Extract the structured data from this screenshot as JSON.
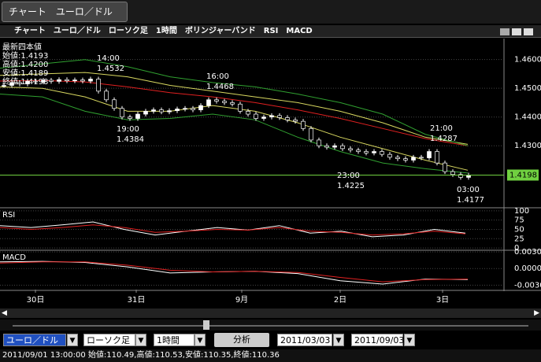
{
  "tab": "チャート　ユーロ／ドル",
  "window_title": "チャート　ユーロ／ドル　ローソク足　1時間　ボリンジャーバンド　RSI　MACD",
  "info_box": [
    "最新四本値",
    "始値:1.4193",
    "高値:1.4200",
    "安値:1.4189",
    "終値:1.4198"
  ],
  "price_chart": {
    "type": "candlestick",
    "ylim": [
      1.4087,
      1.4673
    ],
    "yticks": [
      {
        "value": 1.46,
        "label": "1.4600"
      },
      {
        "value": 1.45,
        "label": "1.4500"
      },
      {
        "value": 1.44,
        "label": "1.4400"
      },
      {
        "value": 1.43,
        "label": "1.4300"
      }
    ],
    "current": {
      "value": 1.4198,
      "label": "1.4198"
    },
    "closes": [
      1.451,
      1.452,
      1.4515,
      1.4525,
      1.4522,
      1.4528,
      1.4524,
      1.453,
      1.4526,
      1.4529,
      1.4525,
      1.4532,
      1.449,
      1.446,
      1.443,
      1.44,
      1.4395,
      1.441,
      1.442,
      1.4425,
      1.4418,
      1.4422,
      1.4428,
      1.443,
      1.4425,
      1.444,
      1.446,
      1.4455,
      1.445,
      1.4445,
      1.442,
      1.441,
      1.4395,
      1.44,
      1.4405,
      1.4398,
      1.439,
      1.4385,
      1.436,
      1.432,
      1.43,
      1.4295,
      1.43,
      1.429,
      1.4285,
      1.428,
      1.4275,
      1.428,
      1.427,
      1.426,
      1.4255,
      1.425,
      1.426,
      1.4258,
      1.428,
      1.424,
      1.421,
      1.42,
      1.419,
      1.4198
    ],
    "series": [
      {
        "color": "#e02020",
        "values": [
          1.4525,
          1.4527,
          1.4522,
          1.4505,
          1.4485,
          1.447,
          1.445,
          1.4425,
          1.4395,
          1.436,
          1.4325,
          1.43
        ]
      },
      {
        "color": "#d8d860",
        "values": [
          1.4545,
          1.455,
          1.4555,
          1.454,
          1.451,
          1.449,
          1.447,
          1.445,
          1.442,
          1.438,
          1.433,
          1.4305
        ]
      },
      {
        "color": "#d8d860",
        "values": [
          1.4505,
          1.45,
          1.447,
          1.442,
          1.442,
          1.444,
          1.442,
          1.438,
          1.433,
          1.429,
          1.425,
          1.4215
        ]
      },
      {
        "color": "#30a030",
        "values": [
          1.457,
          1.4585,
          1.46,
          1.4575,
          1.454,
          1.452,
          1.4505,
          1.448,
          1.445,
          1.441,
          1.434,
          1.43
        ]
      },
      {
        "color": "#30a030",
        "values": [
          1.448,
          1.447,
          1.442,
          1.439,
          1.4395,
          1.441,
          1.439,
          1.433,
          1.428,
          1.424,
          1.422,
          1.4205
        ]
      }
    ],
    "annotations": [
      [
        "14:00",
        "1.4532"
      ],
      [
        "19:00",
        "1.4384"
      ],
      [
        "16:00",
        "1.4468"
      ],
      [
        "23:00",
        "1.4225"
      ],
      [
        "21:00",
        "1.4287"
      ],
      [
        "03:00",
        "1.4177"
      ]
    ]
  },
  "rsi": {
    "label": "RSI",
    "ylim": [
      -4,
      106
    ],
    "yticks": [
      100,
      75,
      50,
      25,
      0
    ],
    "series": [
      {
        "color": "#ffffff",
        "values": [
          60,
          55,
          62,
          70,
          50,
          35,
          45,
          55,
          48,
          60,
          40,
          45,
          30,
          35,
          50,
          40
        ]
      },
      {
        "color": "#e02020",
        "values": [
          55,
          50,
          55,
          62,
          55,
          42,
          45,
          50,
          48,
          55,
          45,
          42,
          35,
          38,
          45,
          38
        ]
      }
    ]
  },
  "macd": {
    "label": "MACD",
    "ylim": [
      -0.0038,
      0.0033
    ],
    "yticks": [
      {
        "value": 0.003,
        "label": "0.0030"
      },
      {
        "value": 0,
        "label": "0.0000"
      },
      {
        "value": -0.003,
        "label": "-0.0030"
      }
    ],
    "series": [
      {
        "color": "#ffffff",
        "values": [
          0.0012,
          0.0013,
          0.0011,
          0.0003,
          -0.0008,
          -0.0006,
          -0.0005,
          -0.0009,
          -0.0022,
          -0.0028,
          -0.0019,
          -0.002
        ]
      },
      {
        "color": "#e02020",
        "values": [
          0.001,
          0.0012,
          0.0012,
          0.0006,
          -0.0003,
          -0.0006,
          -0.0005,
          -0.0007,
          -0.0016,
          -0.0024,
          -0.002,
          -0.0019
        ]
      }
    ]
  },
  "x_axis": [
    "30日",
    "31日",
    "9月",
    "2日",
    "3日"
  ],
  "controls": {
    "pair": "ユーロ／ドル",
    "chart_type": "ローソク足",
    "interval": "1時間",
    "analyze": "分析",
    "from": "2011/03/03",
    "to": "2011/09/03"
  },
  "status": "2011/09/01 13:00:00 始値:110.49,高値:110.53,安値:110.35,終値:110.36"
}
